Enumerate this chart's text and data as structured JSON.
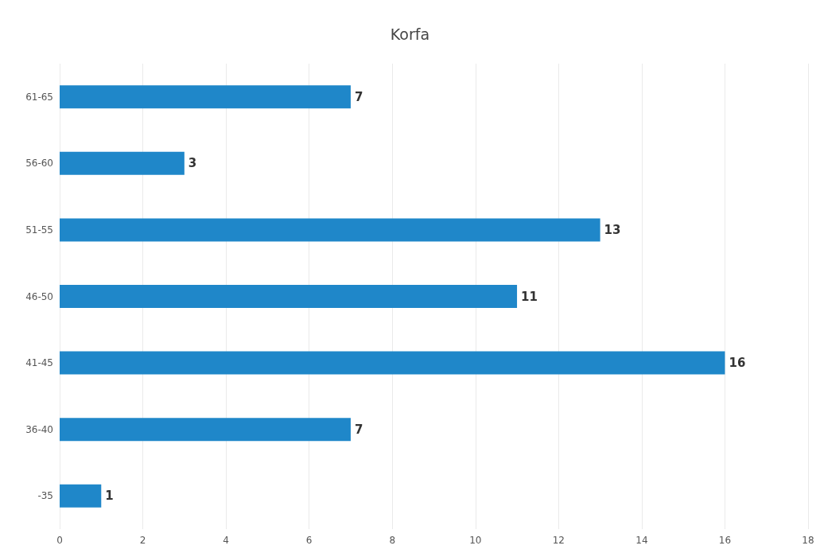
{
  "chart_data": {
    "type": "bar",
    "orientation": "horizontal",
    "title": "Korfa",
    "categories": [
      "61-65",
      "56-60",
      "51-55",
      "46-50",
      "41-45",
      "36-40",
      "-35"
    ],
    "values": [
      7,
      3,
      13,
      11,
      16,
      7,
      1
    ],
    "color": "#1f87c9",
    "xlim": [
      0,
      18
    ],
    "xticks": [
      0,
      2,
      4,
      6,
      8,
      10,
      12,
      14,
      16,
      18
    ],
    "grid": "x",
    "data_labels": true
  }
}
